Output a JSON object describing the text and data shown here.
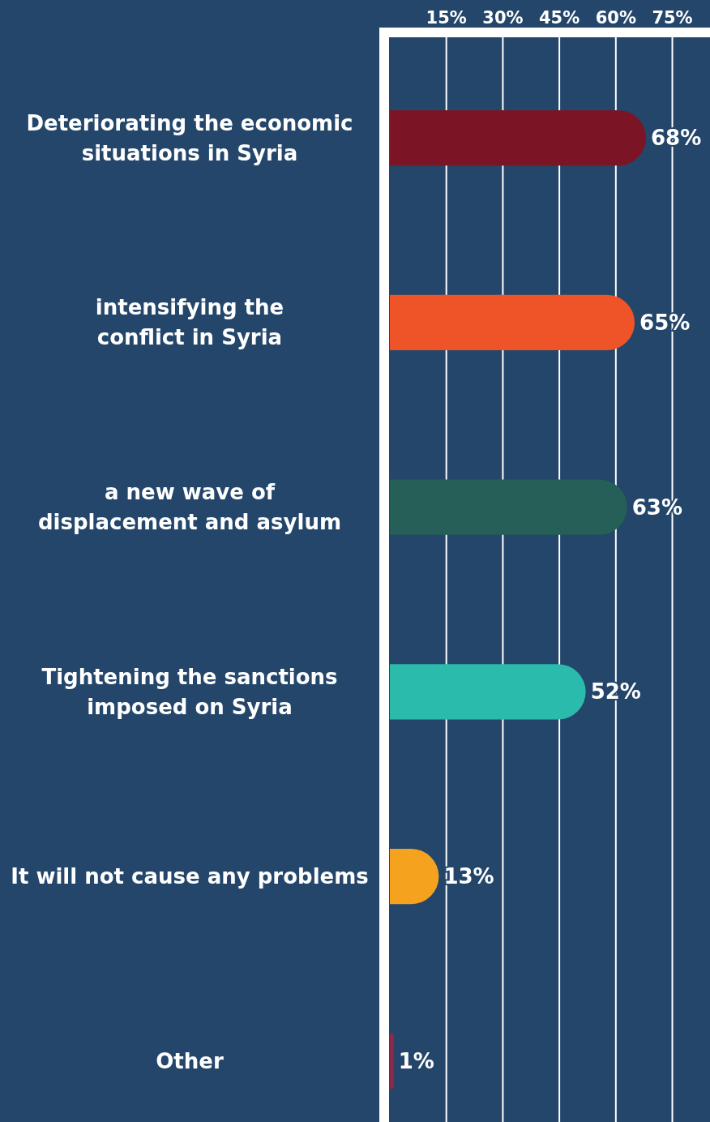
{
  "chart_data": {
    "type": "bar",
    "orientation": "horizontal",
    "categories": [
      "Deteriorating the economic\nsituations in Syria",
      "intensifying the\nconflict in Syria",
      "a new wave of\ndisplacement and asylum",
      "Tightening the sanctions\nimposed on Syria",
      "It will not cause any problems",
      "Other"
    ],
    "values": [
      68,
      65,
      63,
      52,
      13,
      1
    ],
    "colors": [
      "#7b1526",
      "#ef5428",
      "#255f58",
      "#2bbbad",
      "#f5a21f",
      "#8b2a4a"
    ],
    "xlim": [
      0,
      85
    ],
    "xticks": [
      {
        "value": 15,
        "label": "15%"
      },
      {
        "value": 30,
        "label": "30%"
      },
      {
        "value": 45,
        "label": "45%"
      },
      {
        "value": 60,
        "label": "60%"
      },
      {
        "value": 75,
        "label": "75%"
      }
    ],
    "value_labels": [
      "68%",
      "65%",
      "63%",
      "52%",
      "13%",
      "1%"
    ],
    "grid": "x"
  }
}
